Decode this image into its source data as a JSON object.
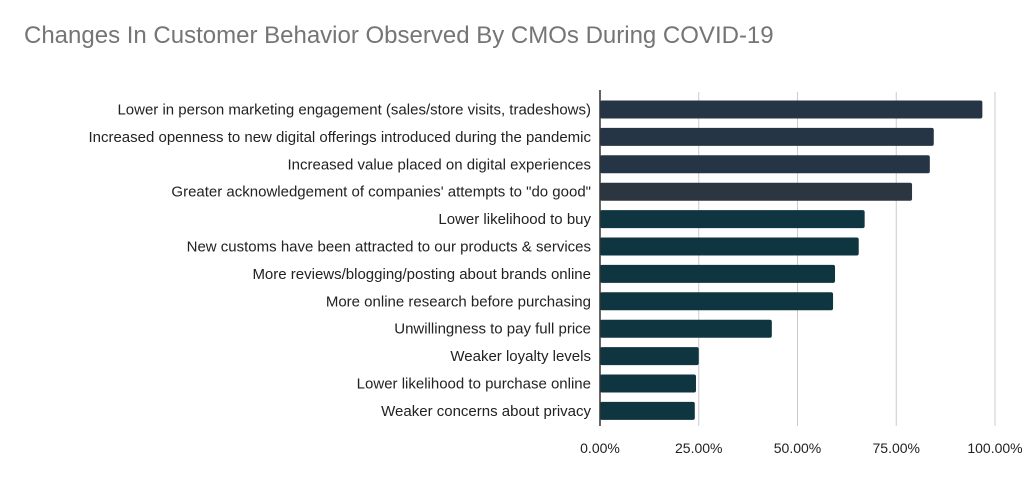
{
  "chart_data": {
    "type": "bar",
    "orientation": "horizontal",
    "title": "Changes In Customer Behavior Observed By CMOs During COVID-19",
    "categories": [
      "Lower in person marketing engagement (sales/store visits, tradeshows)",
      "Increased openness to new digital offerings introduced during the pandemic",
      "Increased value placed on digital experiences",
      "Greater acknowledgement of companies' attempts to \"do good\"",
      "Lower likelihood to buy",
      "New customs have been attracted to our products & services",
      "More reviews/blogging/posting about brands online",
      "More online research before purchasing",
      "Unwillingness to pay full price",
      "Weaker loyalty levels",
      "Lower likelihood to purchase online",
      "Weaker concerns about privacy"
    ],
    "values": [
      0.968,
      0.845,
      0.835,
      0.79,
      0.67,
      0.655,
      0.595,
      0.59,
      0.435,
      0.25,
      0.243,
      0.24
    ],
    "xlim": [
      0,
      1
    ],
    "xticks": [
      "0.00%",
      "25.00%",
      "50.00%",
      "75.00%",
      "100.00%"
    ],
    "xtick_values": [
      0,
      0.25,
      0.5,
      0.75,
      1
    ],
    "grid": "vertical",
    "bar_colors": [
      "#263545",
      "#263545",
      "#263545",
      "#2b3640",
      "#0f3540",
      "#0f3540",
      "#0f3540",
      "#0f3540",
      "#0f3540",
      "#0f3540",
      "#0f3540",
      "#0f3540"
    ],
    "gridline_color": "#cccccc",
    "axis_color": "#333333"
  }
}
